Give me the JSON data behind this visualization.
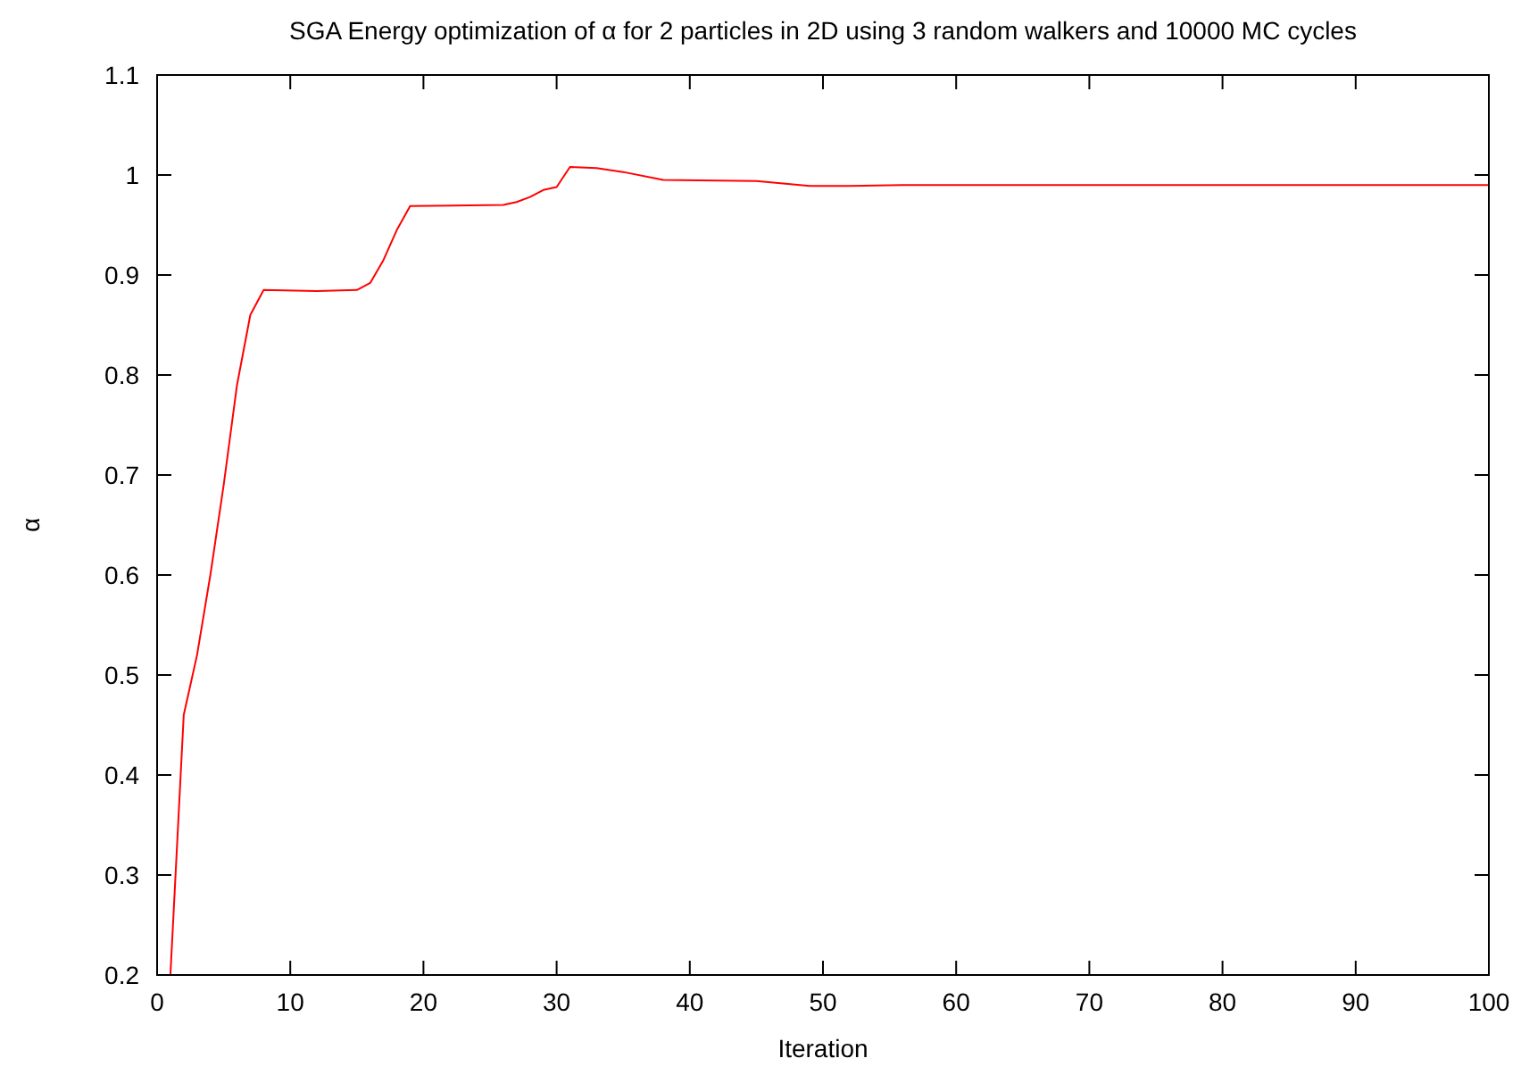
{
  "chart_data": {
    "type": "line",
    "title": "SGA Energy optimization of α for 2 particles in 2D using 3 random walkers and 10000 MC cycles",
    "xlabel": "Iteration",
    "ylabel": "α",
    "x": [
      1,
      2,
      3,
      4,
      5,
      6,
      7,
      8,
      12,
      15,
      16,
      17,
      18,
      19,
      26,
      27,
      28,
      29,
      30,
      31,
      33,
      35,
      38,
      45,
      49,
      52,
      56,
      100
    ],
    "series": [
      {
        "color": "#ff0000",
        "values": [
          0.2,
          0.46,
          0.52,
          0.6,
          0.69,
          0.79,
          0.86,
          0.885,
          0.884,
          0.885,
          0.892,
          0.915,
          0.945,
          0.969,
          0.97,
          0.973,
          0.978,
          0.985,
          0.988,
          1.008,
          1.007,
          1.003,
          0.995,
          0.994,
          0.989,
          0.989,
          0.99,
          0.99
        ]
      }
    ],
    "xlim": [
      0,
      100
    ],
    "xticks": [
      0,
      10,
      20,
      30,
      40,
      50,
      60,
      70,
      80,
      90,
      100
    ],
    "ylim": [
      0.2,
      1.1
    ],
    "yticks": [
      0.2,
      0.3,
      0.4,
      0.5,
      0.6,
      0.7,
      0.8,
      0.9,
      1,
      1.1
    ],
    "line_style": "solid"
  }
}
